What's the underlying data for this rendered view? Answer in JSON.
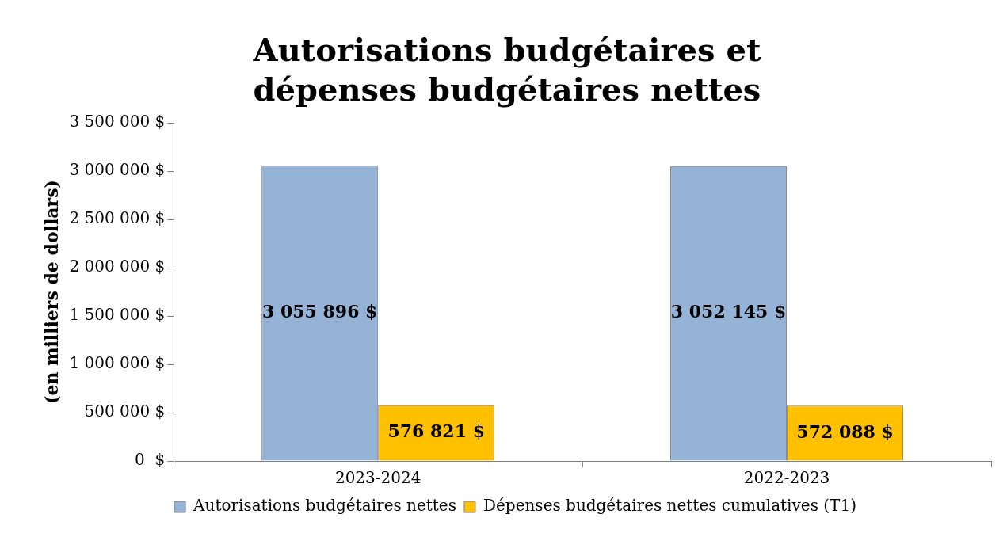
{
  "chart_data": {
    "type": "bar",
    "title": "Autorisations budgétaires et dépenses budgétaires nettes",
    "ylabel": "(en milliers de dollars)",
    "categories": [
      "2023-2024",
      "2022-2023"
    ],
    "series": [
      {
        "name": "Autorisations budgétaires nettes",
        "color": "#95b3d7",
        "values": [
          3055896,
          3052145
        ],
        "value_labels": [
          "3 055 896 $",
          "3 052 145 $"
        ]
      },
      {
        "name": "Dépenses budgétaires nettes cumulatives (T1)",
        "color": "#ffc000",
        "values": [
          576821,
          572088
        ],
        "value_labels": [
          "576 821 $",
          "572 088 $"
        ]
      }
    ],
    "ylim": [
      0,
      3500000
    ],
    "yticks": [
      {
        "value": 0,
        "label": "0  $"
      },
      {
        "value": 500000,
        "label": "500 000 $"
      },
      {
        "value": 1000000,
        "label": "1 000 000 $"
      },
      {
        "value": 1500000,
        "label": "1 500 000 $"
      },
      {
        "value": 2000000,
        "label": "2 000 000 $"
      },
      {
        "value": 2500000,
        "label": "2 500 000 $"
      },
      {
        "value": 3000000,
        "label": "3 000 000 $"
      },
      {
        "value": 3500000,
        "label": "3 500 000 $"
      }
    ],
    "grid": false,
    "legend": "bottom"
  }
}
